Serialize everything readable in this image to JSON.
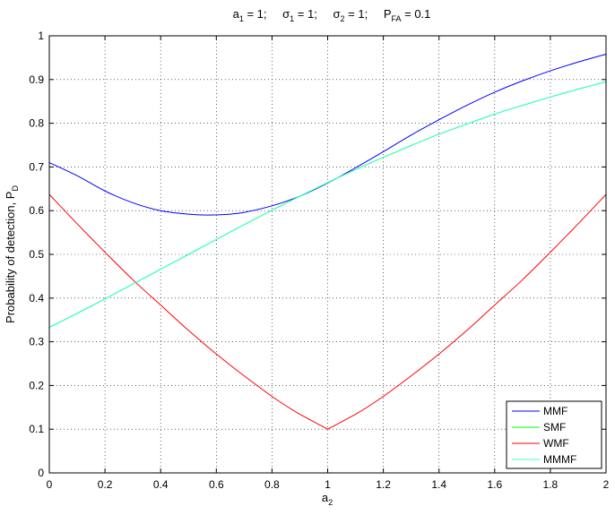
{
  "chart_data": {
    "type": "line",
    "title_parts": {
      "a1_sym": "a",
      "a1_sub": "1",
      "a1_val": " = 1;",
      "s1_sym": "σ",
      "s1_sub": "1",
      "s1_val": " = 1;",
      "s2_sym": "σ",
      "s2_sub": "2",
      "s2_val": " = 1;",
      "pfa_sym": "P",
      "pfa_sub": "FA",
      "pfa_val": " = 0.1"
    },
    "xlabel": {
      "main": "a",
      "sub": "2"
    },
    "ylabel": {
      "main": "Probability of detection, P",
      "sub": "D"
    },
    "xlim": [
      0,
      2
    ],
    "ylim": [
      0,
      1
    ],
    "xticks": [
      0,
      0.2,
      0.4,
      0.6,
      0.8,
      1,
      1.2,
      1.4,
      1.6,
      1.8,
      2
    ],
    "xtick_labels": [
      "0",
      "0.2",
      "0.4",
      "0.6",
      "0.8",
      "1",
      "1.2",
      "1.4",
      "1.6",
      "1.8",
      "2"
    ],
    "yticks": [
      0,
      0.1,
      0.2,
      0.3,
      0.4,
      0.5,
      0.6,
      0.7,
      0.8,
      0.9,
      1
    ],
    "ytick_labels": [
      "0",
      "0.1",
      "0.2",
      "0.3",
      "0.4",
      "0.5",
      "0.6",
      "0.7",
      "0.8",
      "0.9",
      "1"
    ],
    "grid": true,
    "grid_style": "dotted",
    "legend_position": "bottom-right",
    "series": [
      {
        "name": "MMF",
        "color": "#0000ff",
        "x": [
          0,
          0.1,
          0.2,
          0.3,
          0.4,
          0.5,
          0.57,
          0.65,
          0.7,
          0.8,
          0.9,
          1.0,
          1.1,
          1.2,
          1.3,
          1.4,
          1.5,
          1.6,
          1.7,
          1.8,
          1.9,
          2.0
        ],
        "y": [
          0.71,
          0.68,
          0.645,
          0.618,
          0.6,
          0.592,
          0.59,
          0.592,
          0.596,
          0.611,
          0.633,
          0.663,
          0.698,
          0.735,
          0.773,
          0.808,
          0.841,
          0.871,
          0.897,
          0.92,
          0.94,
          0.958
        ]
      },
      {
        "name": "SMF",
        "color": "#00ff00",
        "x": [
          0,
          0.1,
          0.2,
          0.3,
          0.4,
          0.5,
          0.6,
          0.7,
          0.8,
          0.9,
          1.0,
          1.1,
          1.2,
          1.3,
          1.4,
          1.5,
          1.6,
          1.7,
          1.8,
          1.9,
          2.0
        ],
        "y": [
          0.333,
          0.365,
          0.398,
          0.432,
          0.466,
          0.5,
          0.534,
          0.568,
          0.601,
          0.633,
          0.664,
          0.694,
          0.722,
          0.749,
          0.775,
          0.798,
          0.821,
          0.841,
          0.86,
          0.878,
          0.895
        ]
      },
      {
        "name": "WMF",
        "color": "#ff0000",
        "x": [
          0,
          0.1,
          0.2,
          0.3,
          0.4,
          0.5,
          0.6,
          0.7,
          0.8,
          0.9,
          1.0,
          1.1,
          1.2,
          1.3,
          1.4,
          1.5,
          1.6,
          1.7,
          1.8,
          1.9,
          2.0
        ],
        "y": [
          0.637,
          0.57,
          0.505,
          0.442,
          0.384,
          0.326,
          0.272,
          0.222,
          0.175,
          0.134,
          0.1,
          0.134,
          0.175,
          0.222,
          0.272,
          0.326,
          0.384,
          0.442,
          0.505,
          0.57,
          0.637
        ]
      },
      {
        "name": "MMMF",
        "color": "#33ffcc",
        "x": [
          0,
          0.1,
          0.2,
          0.3,
          0.4,
          0.5,
          0.6,
          0.7,
          0.8,
          0.9,
          1.0,
          1.1,
          1.2,
          1.3,
          1.4,
          1.5,
          1.6,
          1.7,
          1.8,
          1.9,
          2.0
        ],
        "y": [
          0.333,
          0.365,
          0.398,
          0.432,
          0.466,
          0.5,
          0.534,
          0.568,
          0.601,
          0.633,
          0.664,
          0.694,
          0.722,
          0.749,
          0.775,
          0.798,
          0.821,
          0.841,
          0.86,
          0.878,
          0.895
        ]
      }
    ]
  }
}
